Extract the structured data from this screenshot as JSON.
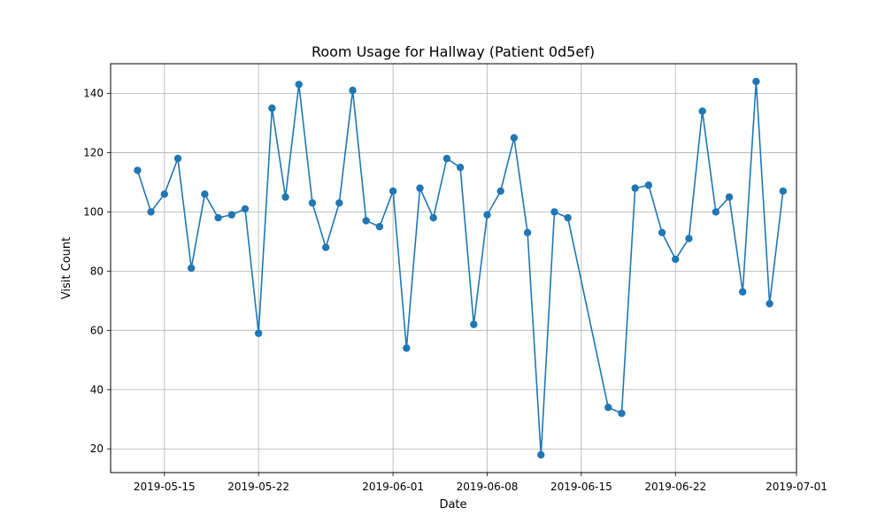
{
  "chart_data": {
    "type": "line",
    "title": "Room Usage for Hallway (Patient 0d5ef)",
    "xlabel": "Date",
    "ylabel": "Visit Count",
    "xlim": [
      "2019-05-11",
      "2019-07-01"
    ],
    "ylim": [
      12,
      150
    ],
    "x_ticks": [
      "2019-05-15",
      "2019-05-22",
      "2019-06-01",
      "2019-06-08",
      "2019-06-15",
      "2019-06-22",
      "2019-07-01"
    ],
    "y_ticks": [
      20,
      40,
      60,
      80,
      100,
      120,
      140
    ],
    "grid": true,
    "color": "#1f77b4",
    "x": [
      "2019-05-13",
      "2019-05-14",
      "2019-05-15",
      "2019-05-16",
      "2019-05-17",
      "2019-05-18",
      "2019-05-19",
      "2019-05-20",
      "2019-05-21",
      "2019-05-22",
      "2019-05-23",
      "2019-05-24",
      "2019-05-25",
      "2019-05-26",
      "2019-05-27",
      "2019-05-28",
      "2019-05-29",
      "2019-05-30",
      "2019-05-31",
      "2019-06-01",
      "2019-06-02",
      "2019-06-03",
      "2019-06-04",
      "2019-06-05",
      "2019-06-06",
      "2019-06-07",
      "2019-06-08",
      "2019-06-09",
      "2019-06-10",
      "2019-06-11",
      "2019-06-12",
      "2019-06-13",
      "2019-06-14",
      "2019-06-17",
      "2019-06-18",
      "2019-06-19",
      "2019-06-20",
      "2019-06-21",
      "2019-06-22",
      "2019-06-23",
      "2019-06-24",
      "2019-06-25",
      "2019-06-26",
      "2019-06-27",
      "2019-06-28",
      "2019-06-29",
      "2019-06-30"
    ],
    "y": [
      114,
      100,
      106,
      118,
      81,
      106,
      98,
      99,
      101,
      59,
      135,
      105,
      143,
      103,
      88,
      103,
      141,
      97,
      95,
      107,
      54,
      108,
      98,
      118,
      115,
      62,
      99,
      107,
      125,
      93,
      18,
      100,
      98,
      34,
      32,
      108,
      109,
      93,
      84,
      91,
      134,
      100,
      105,
      73,
      144,
      69,
      107
    ]
  }
}
